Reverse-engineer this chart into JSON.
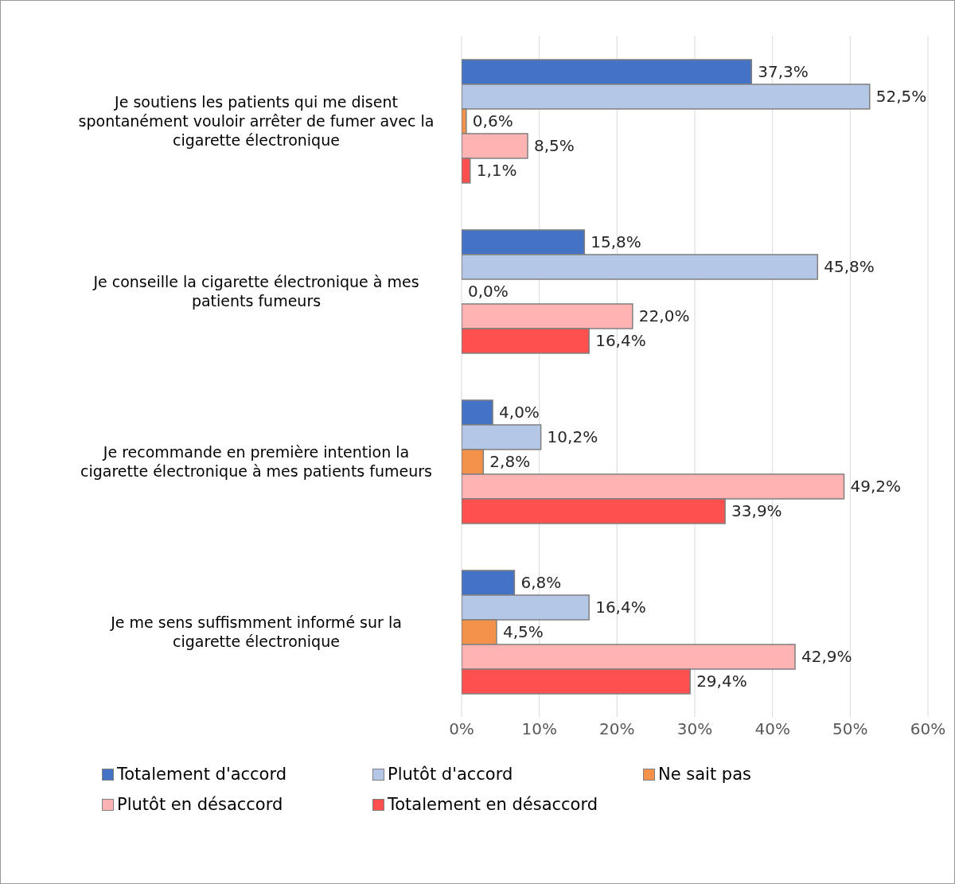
{
  "chart_data": {
    "type": "bar",
    "orientation": "horizontal",
    "categories": [
      "Je soutiens les patients qui me disent spontanément vouloir arrêter de fumer avec la cigarette électronique",
      "Je conseille la cigarette électronique à mes patients fumeurs",
      "Je recommande en première intention la cigarette électronique à mes patients fumeurs",
      "Je me sens suffismment informé sur la cigarette électronique"
    ],
    "series": [
      {
        "name": "Totalement d'accord",
        "color": "#4472c4",
        "values": [
          37.3,
          15.8,
          4.0,
          6.8
        ],
        "value_labels": [
          "37,3%",
          "15,8%",
          "4,0%",
          "6,8%"
        ]
      },
      {
        "name": "Plutôt d'accord",
        "color": "#b4c7e7",
        "values": [
          52.5,
          45.8,
          10.2,
          16.4
        ],
        "value_labels": [
          "52,5%",
          "45,8%",
          "10,2%",
          "16,4%"
        ]
      },
      {
        "name": "Ne sait pas",
        "color": "#f4914a",
        "values": [
          0.6,
          0.0,
          2.8,
          4.5
        ],
        "value_labels": [
          "0,6%",
          "0,0%",
          "2,8%",
          "4,5%"
        ]
      },
      {
        "name": "Plutôt en désaccord",
        "color": "#ffb3b3",
        "values": [
          8.5,
          22.0,
          49.2,
          42.9
        ],
        "value_labels": [
          "8,5%",
          "22,0%",
          "49,2%",
          "42,9%"
        ]
      },
      {
        "name": "Totalement en désaccord",
        "color": "#ff5050",
        "values": [
          1.1,
          16.4,
          33.9,
          29.4
        ],
        "value_labels": [
          "1,1%",
          "16,4%",
          "33,9%",
          "29,4%"
        ]
      }
    ],
    "xlim": [
      0,
      60
    ],
    "xticks": [
      {
        "value": 0,
        "label": "0%"
      },
      {
        "value": 10,
        "label": "10%"
      },
      {
        "value": 20,
        "label": "20%"
      },
      {
        "value": 30,
        "label": "30%"
      },
      {
        "value": 40,
        "label": "40%"
      },
      {
        "value": 50,
        "label": "50%"
      },
      {
        "value": 60,
        "label": "60%"
      }
    ],
    "grid": "x",
    "legend": "bottom"
  }
}
